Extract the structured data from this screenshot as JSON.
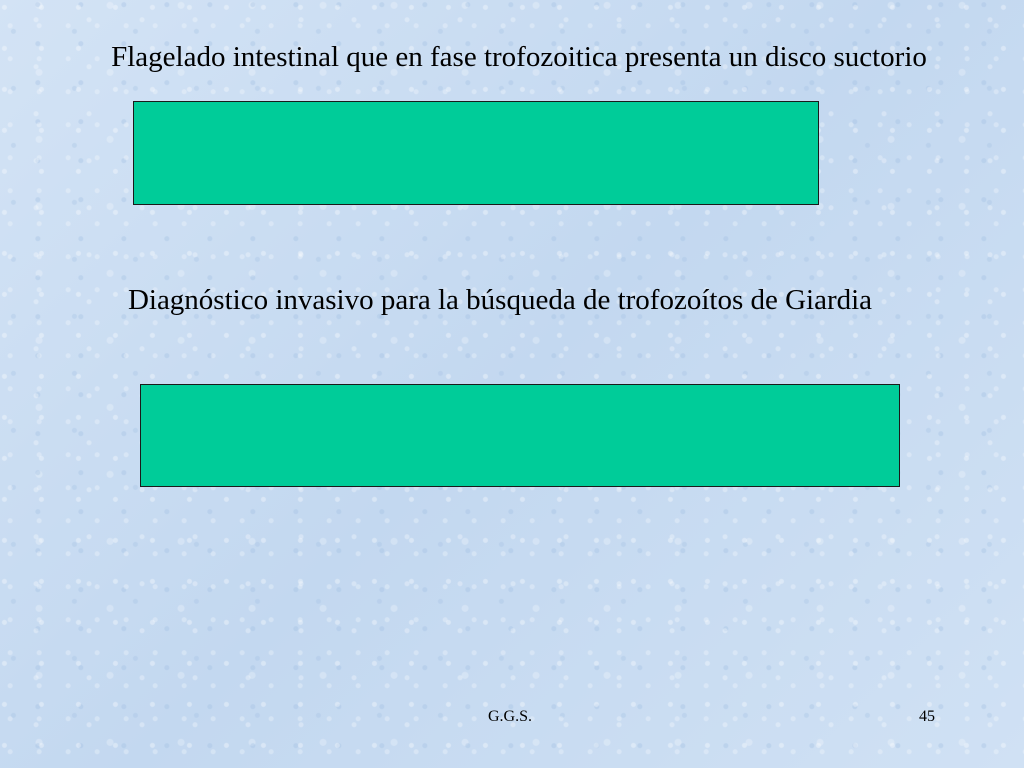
{
  "slide": {
    "question_1": "Flagelado intestinal que en fase trofozoitica presenta un disco suctorio",
    "question_2": "Diagnóstico invasivo para la búsqueda de trofozoítos de Giardia",
    "footer": {
      "author": "G.G.S.",
      "page_number": "45"
    }
  },
  "colors": {
    "answer_box": "#00cc99",
    "background": "#c9dcf2",
    "text": "#000000"
  }
}
